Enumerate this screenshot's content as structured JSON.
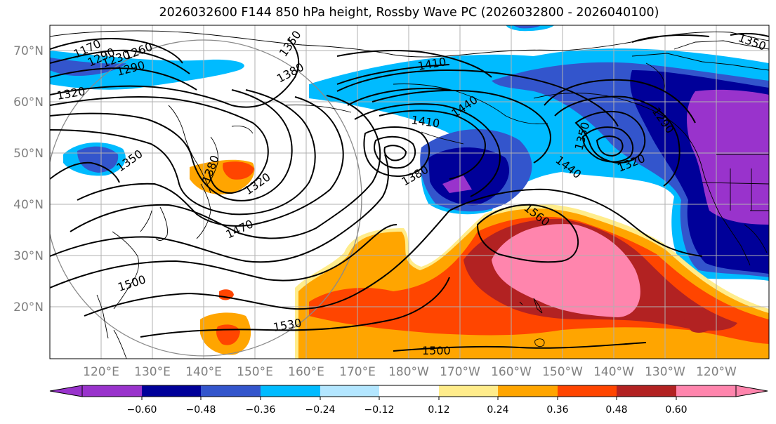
{
  "title": "2026032600 F144 850 hPa height, Rossby Wave PC (2026032800 - 2026040100)",
  "lat_labels": [
    "70°N",
    "60°N",
    "50°N",
    "40°N",
    "30°N",
    "20°N"
  ],
  "lon_labels": [
    "120°E",
    "130°E",
    "140°E",
    "150°E",
    "160°E",
    "170°E",
    "180°W",
    "170°W",
    "160°W",
    "150°W",
    "140°W",
    "130°W",
    "120°W"
  ],
  "contour_labels": [
    "1170",
    "1290",
    "1230",
    "1260",
    "1290",
    "1320",
    "1350",
    "1380",
    "1410",
    "1440",
    "1410",
    "1380",
    "1350",
    "1320",
    "1350",
    "1320",
    "1290",
    "1440",
    "1470",
    "1500",
    "1530",
    "1560",
    "1500",
    "1380",
    "1350"
  ],
  "colorbar": {
    "ticks": [
      "−0.60",
      "−0.48",
      "−0.36",
      "−0.24",
      "−0.12",
      "0.12",
      "0.24",
      "0.36",
      "0.48",
      "0.60"
    ],
    "colors": [
      "#9933cc",
      "#000099",
      "#3355cc",
      "#00bbff",
      "#b3e6ff",
      "#ffffff",
      "#ffec8b",
      "#ffa500",
      "#ff4500",
      "#b22222",
      "#ff85ad",
      "#ff85ad"
    ]
  }
}
